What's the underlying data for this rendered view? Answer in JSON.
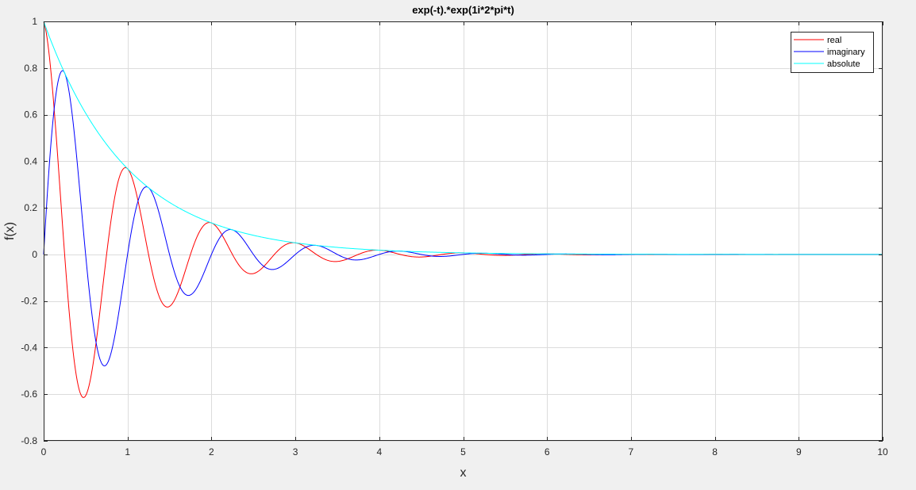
{
  "chart_data": {
    "type": "line",
    "title": "exp(-t).*exp(1i*2*pi*t)",
    "xlabel": "x",
    "ylabel": "f(x)",
    "xlim": [
      0,
      10
    ],
    "ylim": [
      -0.8,
      1
    ],
    "xticks": [
      "0",
      "1",
      "2",
      "3",
      "4",
      "5",
      "6",
      "7",
      "8",
      "9",
      "10"
    ],
    "yticks": [
      "-0.8",
      "-0.6",
      "-0.4",
      "-0.2",
      "0",
      "0.2",
      "0.4",
      "0.6",
      "0.8",
      "1"
    ],
    "grid": true,
    "legend_position": "top-right",
    "function": "exp(-t).*exp(1i*2*pi*t)",
    "sample_step": 0.01,
    "series": [
      {
        "name": "real",
        "component": "real",
        "color": "#ff0000"
      },
      {
        "name": "imaginary",
        "component": "imaginary",
        "color": "#0000ff"
      },
      {
        "name": "absolute",
        "component": "absolute",
        "color": "#00ffff"
      }
    ]
  }
}
